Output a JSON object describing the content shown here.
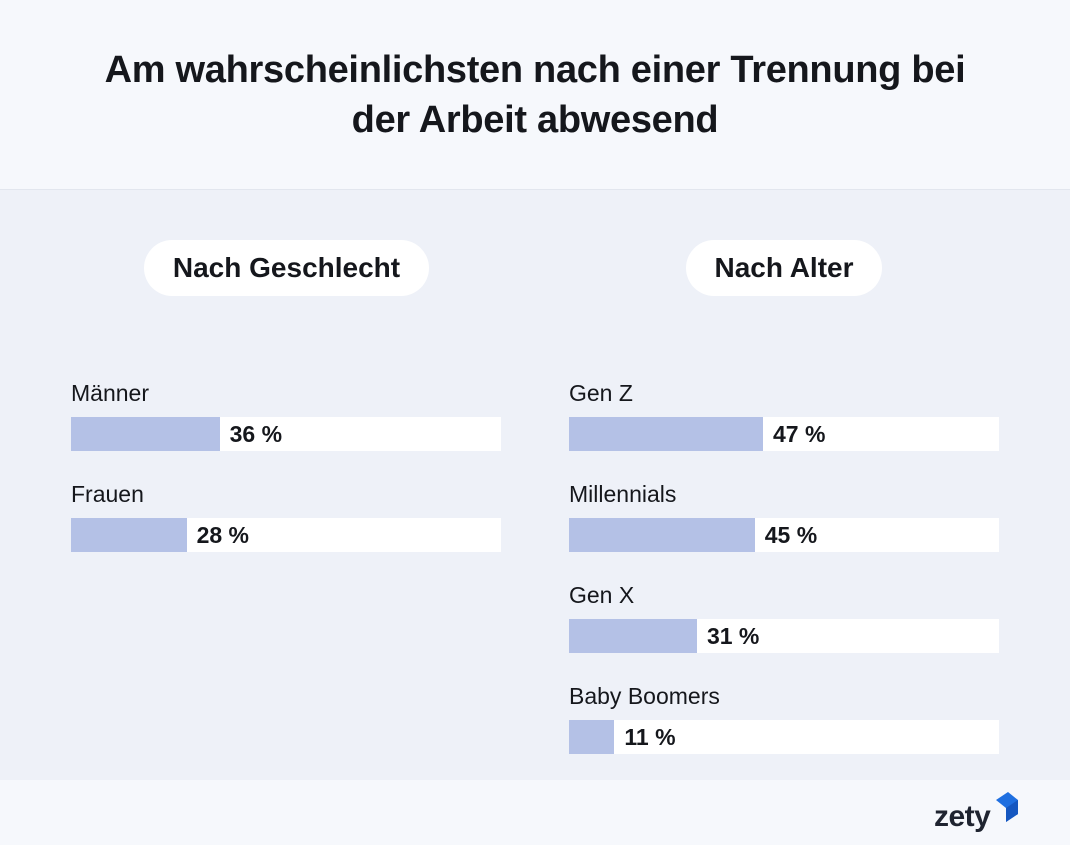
{
  "title": "Am wahrscheinlichsten nach einer Trennung bei der Arbeit abwesend",
  "colors": {
    "bar": "#b4c1e6",
    "track": "#ffffff",
    "background": "#eef1f8",
    "logo_blue": "#1f6fe0"
  },
  "chart_data": [
    {
      "type": "bar",
      "orientation": "horizontal",
      "title": "Nach Geschlecht",
      "categories": [
        "Männer",
        "Frauen"
      ],
      "values": [
        36,
        28
      ],
      "labels": [
        "36 %",
        "28 %"
      ],
      "xlim": [
        0,
        100
      ]
    },
    {
      "type": "bar",
      "orientation": "horizontal",
      "title": "Nach Alter",
      "categories": [
        "Gen Z",
        "Millennials",
        "Gen X",
        "Baby Boomers"
      ],
      "values": [
        47,
        45,
        31,
        11
      ],
      "labels": [
        "47 %",
        "45 %",
        "31 %",
        "11 %"
      ],
      "xlim": [
        0,
        100
      ]
    }
  ],
  "logo": "zety"
}
